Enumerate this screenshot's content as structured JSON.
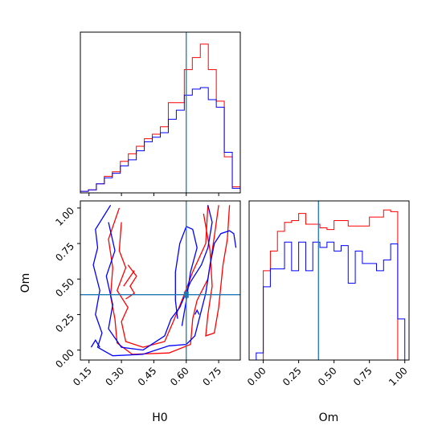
{
  "chart_data": {
    "type": "corner",
    "parameters": [
      "H0",
      "Om"
    ],
    "truth": {
      "H0": 0.6,
      "Om": 0.39
    },
    "colors": {
      "red": "#ff0000",
      "blue": "#0000ff",
      "truth": "#1f77b4"
    },
    "h0_hist": {
      "xlim": [
        0.11,
        0.85
      ],
      "bin_edges": [
        0.11,
        0.147,
        0.184,
        0.221,
        0.258,
        0.295,
        0.332,
        0.369,
        0.406,
        0.443,
        0.48,
        0.517,
        0.554,
        0.591,
        0.628,
        0.665,
        0.702,
        0.739,
        0.776,
        0.813,
        0.85
      ],
      "series": [
        {
          "name": "red",
          "counts": [
            1,
            2,
            6,
            11,
            14,
            21,
            26,
            31,
            36,
            39,
            44,
            60,
            60,
            82,
            90,
            99,
            82,
            61,
            24,
            4
          ]
        },
        {
          "name": "blue",
          "counts": [
            1,
            2,
            6,
            10,
            13,
            18,
            22,
            28,
            34,
            37,
            40,
            49,
            55,
            65,
            69,
            70,
            62,
            57,
            27,
            3
          ]
        }
      ]
    },
    "om_hist": {
      "xlim": [
        -0.1,
        1.03
      ],
      "bin_edges": [
        -0.05,
        0.0,
        0.05,
        0.1,
        0.15,
        0.2,
        0.25,
        0.3,
        0.35,
        0.4,
        0.45,
        0.5,
        0.55,
        0.6,
        0.65,
        0.7,
        0.75,
        0.8,
        0.85,
        0.9,
        0.95,
        1.0
      ],
      "series": [
        {
          "name": "red",
          "counts": [
            0,
            50,
            61,
            72,
            77,
            78,
            82,
            76,
            76,
            74,
            73,
            78,
            78,
            75,
            75,
            75,
            80,
            80,
            84,
            83,
            0
          ]
        },
        {
          "name": "blue",
          "counts": [
            4,
            41,
            51,
            51,
            66,
            50,
            66,
            50,
            66,
            63,
            66,
            61,
            64,
            43,
            61,
            54,
            54,
            50,
            56,
            65,
            23
          ]
        }
      ]
    },
    "contours": {
      "xlim": [
        0.11,
        0.85
      ],
      "ylim": [
        -0.07,
        1.05
      ],
      "red": [
        [
          [
            0.29,
            1.0
          ],
          [
            0.24,
            0.78
          ],
          [
            0.26,
            0.58
          ],
          [
            0.25,
            0.38
          ],
          [
            0.27,
            0.22
          ],
          [
            0.28,
            0.05
          ],
          [
            0.35,
            -0.03
          ],
          [
            0.52,
            -0.02
          ],
          [
            0.62,
            0.04
          ],
          [
            0.63,
            0.22
          ],
          [
            0.65,
            0.35
          ],
          [
            0.7,
            0.5
          ],
          [
            0.73,
            0.8
          ],
          [
            0.75,
            1.02
          ]
        ],
        [
          [
            0.3,
            0.9
          ],
          [
            0.29,
            0.7
          ],
          [
            0.32,
            0.58
          ],
          [
            0.28,
            0.42
          ],
          [
            0.33,
            0.3
          ],
          [
            0.3,
            0.2
          ],
          [
            0.32,
            0.06
          ],
          [
            0.4,
            0.02
          ],
          [
            0.5,
            0.06
          ],
          [
            0.54,
            0.2
          ],
          [
            0.58,
            0.35
          ],
          [
            0.63,
            0.55
          ],
          [
            0.69,
            0.75
          ],
          [
            0.7,
            1.02
          ]
        ],
        [
          [
            0.68,
            0.96
          ],
          [
            0.71,
            0.7
          ],
          [
            0.72,
            0.45
          ],
          [
            0.7,
            0.25
          ],
          [
            0.69,
            0.1
          ],
          [
            0.73,
            0.12
          ],
          [
            0.75,
            0.3
          ],
          [
            0.77,
            0.6
          ],
          [
            0.79,
            0.78
          ],
          [
            0.8,
            1.02
          ]
        ],
        [
          [
            0.33,
            0.6
          ],
          [
            0.37,
            0.52
          ],
          [
            0.34,
            0.45
          ],
          [
            0.36,
            0.4
          ],
          [
            0.32,
            0.36
          ]
        ],
        [
          [
            0.31,
            0.45
          ],
          [
            0.36,
            0.56
          ]
        ]
      ],
      "blue": [
        [
          [
            0.25,
            1.02
          ],
          [
            0.18,
            0.85
          ],
          [
            0.19,
            0.72
          ],
          [
            0.17,
            0.6
          ],
          [
            0.2,
            0.42
          ],
          [
            0.18,
            0.25
          ],
          [
            0.21,
            0.12
          ],
          [
            0.19,
            0.02
          ],
          [
            0.26,
            -0.04
          ],
          [
            0.4,
            -0.03
          ],
          [
            0.52,
            0.03
          ],
          [
            0.6,
            0.04
          ],
          [
            0.64,
            0.1
          ],
          [
            0.66,
            0.22
          ],
          [
            0.69,
            0.4
          ],
          [
            0.71,
            0.6
          ],
          [
            0.73,
            0.75
          ],
          [
            0.76,
            0.82
          ],
          [
            0.8,
            0.84
          ],
          [
            0.82,
            0.82
          ],
          [
            0.83,
            0.72
          ]
        ],
        [
          [
            0.24,
            0.9
          ],
          [
            0.27,
            0.7
          ],
          [
            0.23,
            0.52
          ],
          [
            0.26,
            0.32
          ],
          [
            0.24,
            0.15
          ],
          [
            0.3,
            0.02
          ],
          [
            0.4,
            0.0
          ],
          [
            0.5,
            0.1
          ],
          [
            0.53,
            0.22
          ],
          [
            0.57,
            0.3
          ],
          [
            0.62,
            0.48
          ],
          [
            0.67,
            0.6
          ],
          [
            0.7,
            0.72
          ],
          [
            0.72,
            0.9
          ],
          [
            0.7,
            1.02
          ]
        ],
        [
          [
            0.58,
            0.17
          ],
          [
            0.6,
            0.35
          ],
          [
            0.62,
            0.55
          ],
          [
            0.65,
            0.72
          ],
          [
            0.63,
            0.85
          ],
          [
            0.6,
            0.87
          ],
          [
            0.57,
            0.75
          ],
          [
            0.55,
            0.55
          ],
          [
            0.55,
            0.35
          ],
          [
            0.56,
            0.22
          ]
        ],
        [
          [
            0.16,
            0.02
          ],
          [
            0.18,
            0.07
          ],
          [
            0.2,
            0.02
          ]
        ],
        [
          [
            0.64,
            0.25
          ],
          [
            0.65,
            0.28
          ],
          [
            0.66,
            0.25
          ]
        ]
      ]
    },
    "axes": {
      "x_label": "H0",
      "y_label": "Om",
      "om_x_label": "Om",
      "h0_ticks": [
        "0.15",
        "0.30",
        "0.45",
        "0.60",
        "0.75"
      ],
      "om_ticks": [
        "0.00",
        "0.25",
        "0.50",
        "0.75",
        "1.00"
      ]
    }
  }
}
